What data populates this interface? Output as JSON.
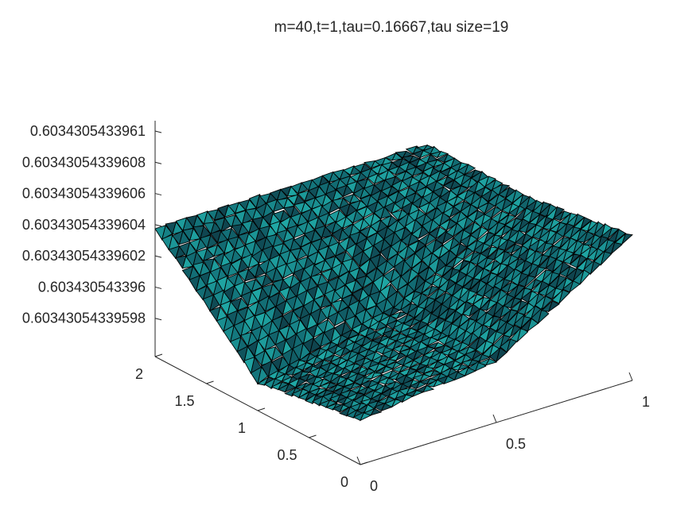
{
  "chart_data": {
    "type": "surface",
    "title": "m=40,t=1,tau=0.16667,tau size=19",
    "xlabel": "",
    "ylabel": "",
    "zlabel": "",
    "xlim": [
      0,
      1
    ],
    "ylim": [
      0,
      2
    ],
    "zlim": [
      0.60343054339597,
      0.6034305433961
    ],
    "x_ticks": [
      "0",
      "0.5",
      "1"
    ],
    "y_ticks": [
      "0",
      "0.5",
      "1",
      "1.5",
      "2"
    ],
    "z_ticks": [
      "0.6034305433961",
      "0.60343054339608",
      "0.60343054339606",
      "0.60343054339604",
      "0.60343054339602",
      "0.603430543396",
      "0.60343054339598"
    ],
    "grid": false,
    "colormap": "parula",
    "edge_color": "#000000",
    "colors": {
      "low": "#0d2e3a",
      "mid": "#13737a",
      "high": "#23b5b0"
    },
    "surface": {
      "x": [
        0,
        0.5,
        1
      ],
      "y": [
        0,
        1,
        2
      ],
      "z": [
        [
          0.60343054339599,
          0.603430543396,
          0.60343054339605
        ],
        [
          0.60343054339598,
          0.603430543396,
          0.60343054339604
        ],
        [
          0.60343054339604,
          0.60343054339604,
          0.60343054339604
        ]
      ]
    }
  }
}
